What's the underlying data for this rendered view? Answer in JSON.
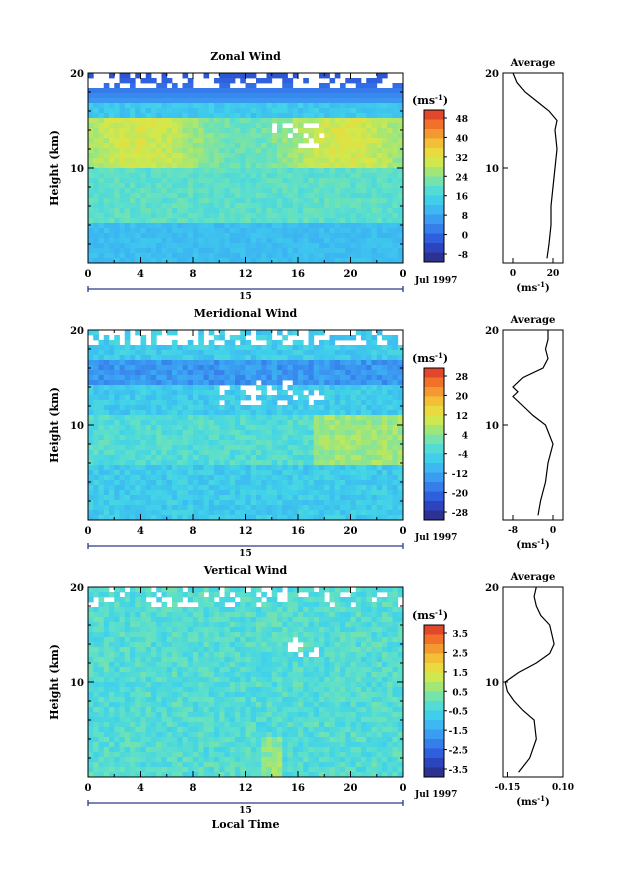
{
  "chart_data": [
    {
      "type": "heatmap",
      "title": "Zonal Wind",
      "ylabel": "Height (km)",
      "xticks": [
        "0",
        "4",
        "8",
        "12",
        "16",
        "20",
        "0"
      ],
      "yticks": [
        "10",
        "20"
      ],
      "ylim": [
        0,
        20
      ],
      "xlim": [
        0,
        24
      ],
      "day_label": "15",
      "date_label": "Jul 1997",
      "colorbar": {
        "unit": "(ms",
        "unit_sup": "-1",
        "unit_close": ")",
        "ticks": [
          "48",
          "40",
          "32",
          "24",
          "16",
          "8",
          "0",
          "-8"
        ],
        "range": [
          -8,
          48
        ]
      },
      "profile": {
        "title": "Average",
        "xticks": [
          "0",
          "20"
        ],
        "xunit": "(ms",
        "xunit_sup": "-1",
        "xunit_close": ")",
        "xlim": [
          -5,
          25
        ],
        "heights": [
          0.5,
          2,
          4,
          6,
          8,
          10,
          12,
          14,
          15,
          16,
          17,
          18,
          19,
          20
        ],
        "values": [
          17,
          18,
          19,
          19,
          20,
          21,
          22,
          21,
          22,
          18,
          12,
          6,
          2,
          0
        ]
      }
    },
    {
      "type": "heatmap",
      "title": "Meridional Wind",
      "ylabel": "Height (km)",
      "xticks": [
        "0",
        "4",
        "8",
        "12",
        "16",
        "20",
        "0"
      ],
      "yticks": [
        "10",
        "20"
      ],
      "ylim": [
        0,
        20
      ],
      "xlim": [
        0,
        24
      ],
      "day_label": "15",
      "date_label": "Jul 1997",
      "colorbar": {
        "unit": "(ms",
        "unit_sup": "-1",
        "unit_close": ")",
        "ticks": [
          "28",
          "20",
          "12",
          "4",
          "-4",
          "-12",
          "-20",
          "-28"
        ],
        "range": [
          -28,
          28
        ]
      },
      "profile": {
        "title": "Average",
        "xticks": [
          "-8",
          "0"
        ],
        "xunit": "(ms",
        "xunit_sup": "-1",
        "xunit_close": ")",
        "xlim": [
          -10,
          2
        ],
        "heights": [
          0.5,
          2,
          4,
          6,
          8,
          10,
          11,
          12,
          13,
          13.5,
          14,
          15,
          16,
          17,
          18,
          19,
          20
        ],
        "values": [
          -3,
          -2.5,
          -1.5,
          -1,
          0,
          -1.5,
          -4,
          -6,
          -8,
          -7,
          -8,
          -6,
          -2,
          -1,
          -1.5,
          -1,
          -1
        ]
      }
    },
    {
      "type": "heatmap",
      "title": "Vertical Wind",
      "ylabel": "Height (km)",
      "xlabel": "Local Time",
      "xticks": [
        "0",
        "4",
        "8",
        "12",
        "16",
        "20",
        "0"
      ],
      "yticks": [
        "10",
        "20"
      ],
      "ylim": [
        0,
        20
      ],
      "xlim": [
        0,
        24
      ],
      "day_label": "15",
      "date_label": "Jul 1997",
      "colorbar": {
        "unit": "(ms",
        "unit_sup": "-1",
        "unit_close": ")",
        "ticks": [
          "3.5",
          "2.5",
          "1.5",
          "0.5",
          "-0.5",
          "-1.5",
          "-2.5",
          "-3.5"
        ],
        "range": [
          -4,
          4
        ]
      },
      "profile": {
        "title": "Average",
        "xticks": [
          "-0.15",
          "0.10"
        ],
        "xunit": "(ms",
        "xunit_sup": "-1",
        "xunit_close": ")",
        "xlim": [
          -0.17,
          0.1
        ],
        "heights": [
          0.5,
          2,
          4,
          6,
          7,
          8,
          9,
          10,
          11,
          12,
          13,
          14,
          15,
          16,
          17,
          18,
          19,
          20
        ],
        "values": [
          -0.1,
          -0.05,
          -0.02,
          -0.03,
          -0.08,
          -0.12,
          -0.15,
          -0.16,
          -0.1,
          -0.02,
          0.04,
          0.06,
          0.05,
          0.04,
          0.0,
          -0.02,
          -0.03,
          -0.02
        ]
      }
    }
  ]
}
